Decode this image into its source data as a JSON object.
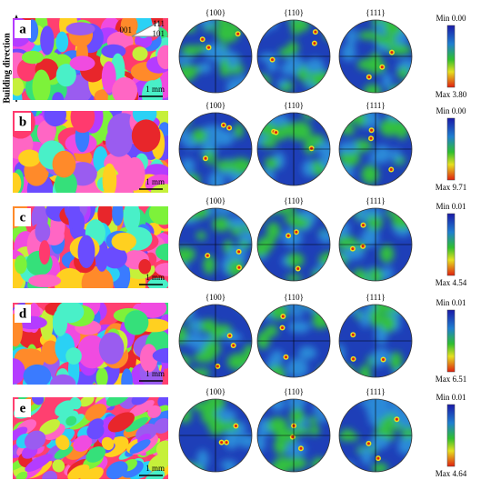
{
  "axis_label": "Building direction",
  "ipf_key": [
    "111",
    "001",
    "101"
  ],
  "rows": [
    {
      "label": "a",
      "scale_bar": "1 mm",
      "pole_figures": [
        "{100}",
        "{110}",
        "{111}"
      ],
      "min": "Min 0.00",
      "max": "Max 3.80"
    },
    {
      "label": "b",
      "scale_bar": "1 mm",
      "pole_figures": [
        "{100}",
        "{110}",
        "{111}"
      ],
      "min": "Min 0.00",
      "max": "Max 9.71"
    },
    {
      "label": "c",
      "scale_bar": "1 mm",
      "pole_figures": [
        "{100}",
        "{110}",
        "{111}"
      ],
      "min": "Min 0.01",
      "max": "Max 4.54"
    },
    {
      "label": "d",
      "scale_bar": "1 mm",
      "pole_figures": [
        "{100}",
        "{110}",
        "{111}"
      ],
      "min": "Min 0.01",
      "max": "Max 6.51"
    },
    {
      "label": "e",
      "scale_bar": "1 mm",
      "pole_figures": [
        "{100}",
        "{110}",
        "{111}"
      ],
      "min": "Min 0.01",
      "max": "Max 4.64"
    }
  ]
}
